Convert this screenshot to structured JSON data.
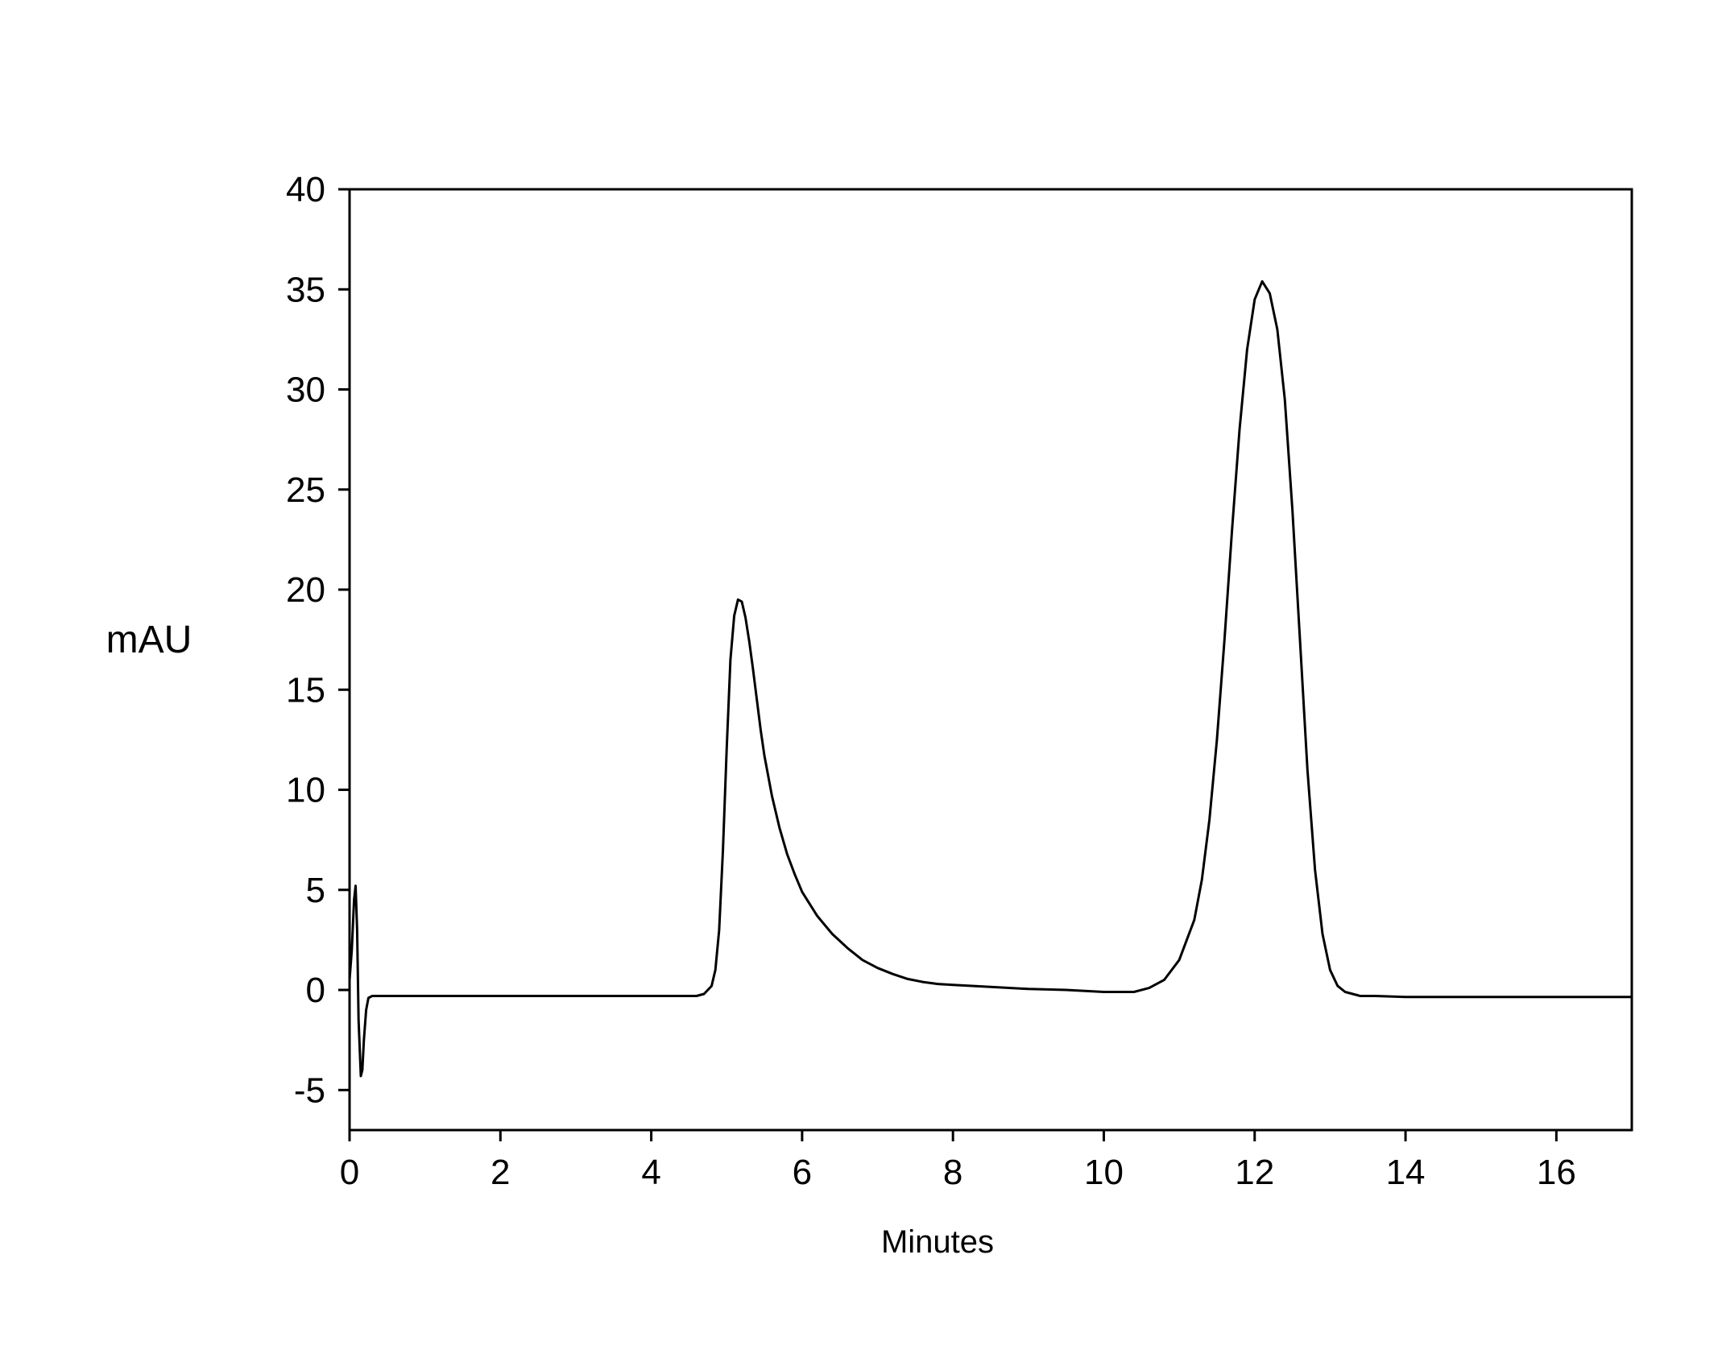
{
  "chart_data": {
    "type": "line",
    "title": "",
    "xlabel": "Minutes",
    "ylabel": "mAU",
    "xlim": [
      0,
      17
    ],
    "ylim": [
      -7,
      40
    ],
    "xticks": [
      0,
      2,
      4,
      6,
      8,
      10,
      12,
      14,
      16
    ],
    "yticks": [
      -5,
      0,
      5,
      10,
      15,
      20,
      25,
      30,
      35,
      40
    ],
    "grid": false,
    "legend": "none",
    "line_color": "#000000",
    "series": [
      {
        "x": [
          0.0,
          0.03,
          0.06,
          0.08,
          0.1,
          0.12,
          0.15,
          0.17,
          0.19,
          0.22,
          0.25,
          0.3,
          0.4,
          1.0,
          2.0,
          3.0,
          4.0,
          4.4,
          4.5,
          4.6,
          4.7,
          4.8,
          4.85,
          4.9,
          4.95,
          5.0,
          5.05,
          5.1,
          5.15,
          5.2,
          5.25,
          5.3,
          5.35,
          5.4,
          5.45,
          5.5,
          5.6,
          5.7,
          5.8,
          5.9,
          6.0,
          6.2,
          6.4,
          6.6,
          6.8,
          7.0,
          7.2,
          7.4,
          7.6,
          7.8,
          8.0,
          8.5,
          9.0,
          9.5,
          10.0,
          10.4,
          10.6,
          10.8,
          11.0,
          11.2,
          11.3,
          11.4,
          11.5,
          11.6,
          11.7,
          11.8,
          11.9,
          12.0,
          12.1,
          12.2,
          12.3,
          12.4,
          12.5,
          12.6,
          12.7,
          12.8,
          12.9,
          13.0,
          13.1,
          13.2,
          13.3,
          13.4,
          13.6,
          14.0,
          15.0,
          16.0,
          17.0
        ],
        "y": [
          0.5,
          2.0,
          4.5,
          5.2,
          3.0,
          -1.5,
          -4.3,
          -4.0,
          -2.5,
          -1.0,
          -0.4,
          -0.3,
          -0.3,
          -0.3,
          -0.3,
          -0.3,
          -0.3,
          -0.3,
          -0.3,
          -0.3,
          -0.2,
          0.2,
          1.0,
          3.0,
          7.0,
          12.0,
          16.5,
          18.7,
          19.5,
          19.4,
          18.6,
          17.4,
          16.0,
          14.5,
          13.0,
          11.7,
          9.7,
          8.1,
          6.8,
          5.8,
          4.9,
          3.7,
          2.8,
          2.1,
          1.5,
          1.1,
          0.8,
          0.55,
          0.4,
          0.3,
          0.25,
          0.15,
          0.05,
          0.0,
          -0.1,
          -0.1,
          0.1,
          0.5,
          1.5,
          3.5,
          5.5,
          8.5,
          12.5,
          17.5,
          23.0,
          28.0,
          32.0,
          34.5,
          35.4,
          34.8,
          33.0,
          29.5,
          24.0,
          17.5,
          11.0,
          6.0,
          2.8,
          1.0,
          0.2,
          -0.1,
          -0.2,
          -0.3,
          -0.3,
          -0.35,
          -0.35,
          -0.35,
          -0.35
        ]
      }
    ]
  }
}
